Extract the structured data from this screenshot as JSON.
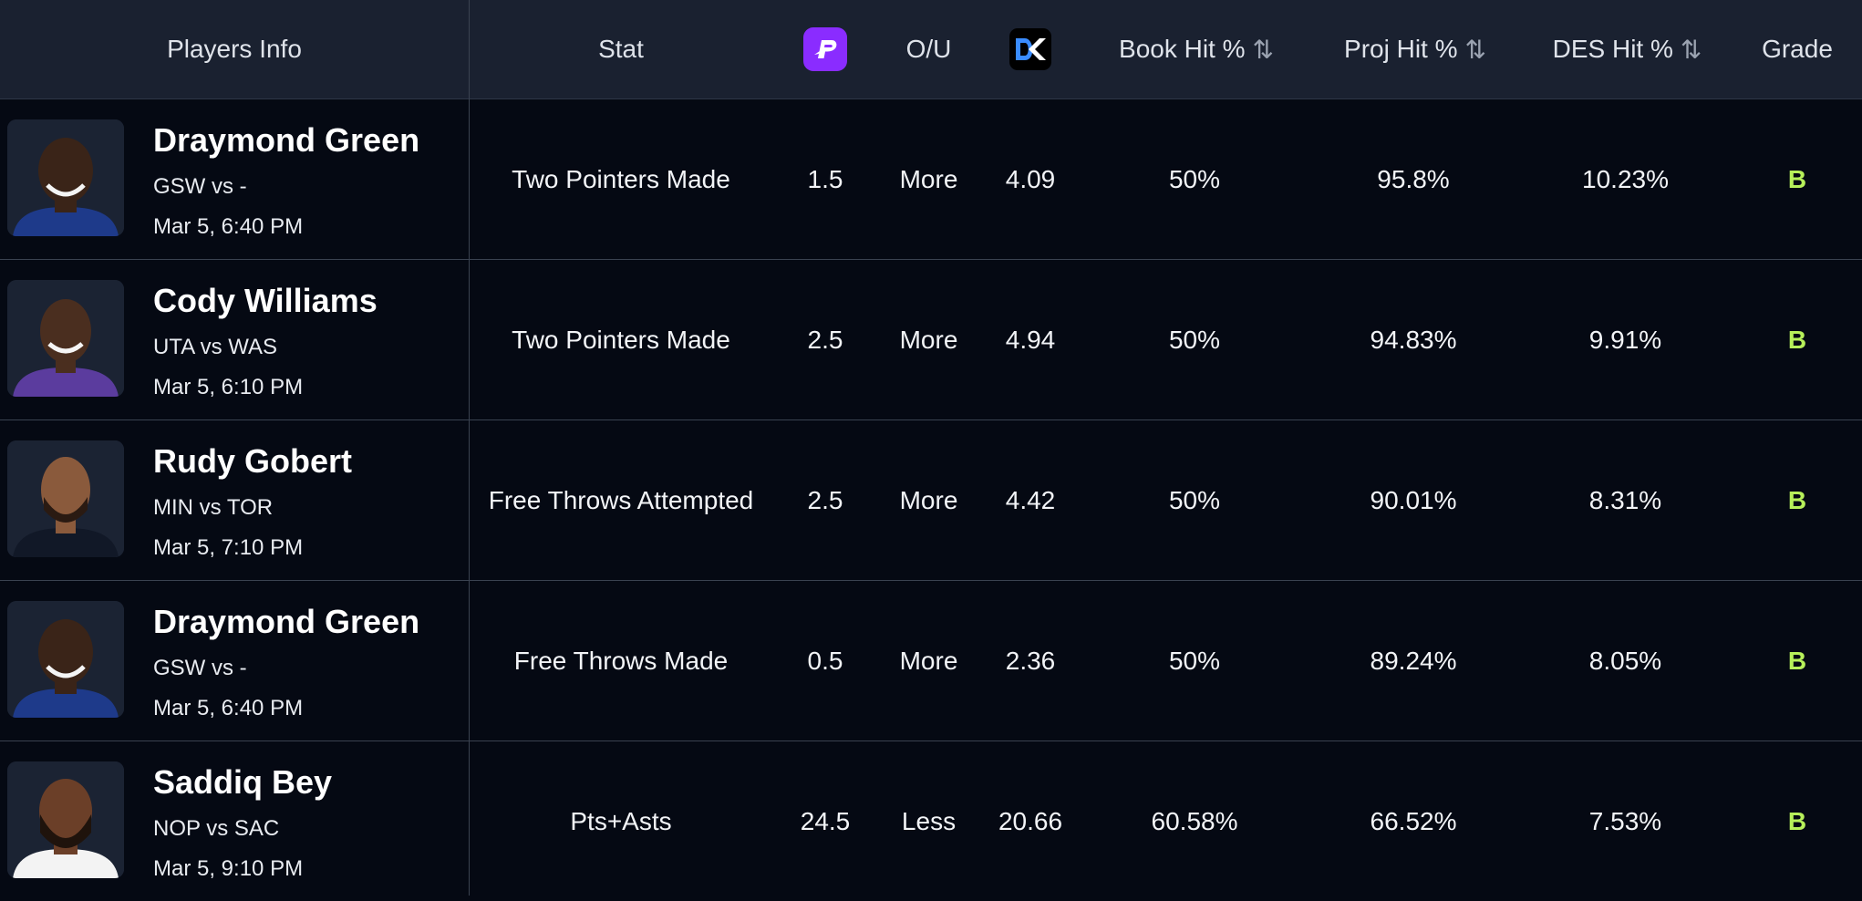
{
  "header": {
    "players_info": "Players Info",
    "stat": "Stat",
    "ou": "O/U",
    "book_hit": "Book Hit %",
    "proj_hit": "Proj Hit %",
    "des_hit": "DES Hit %",
    "grade": "Grade",
    "sort_icon": "⇅",
    "prizepicks_icon": "prizepicks-logo",
    "dk_icon": "draftkings-logo"
  },
  "colors": {
    "header_bg": "#1a2130",
    "body_bg": "#050913",
    "grade_color": "#b7f05a",
    "prizepicks_purple": "#8a2cff"
  },
  "rows": [
    {
      "name": "Draymond Green",
      "game": "GSW vs -",
      "time": "Mar 5, 6:40 PM",
      "stat": "Two Pointers Made",
      "line": "1.5",
      "ou": "More",
      "dk": "4.09",
      "book_hit": "50%",
      "proj_hit": "95.8%",
      "des_hit": "10.23%",
      "grade": "B"
    },
    {
      "name": "Cody Williams",
      "game": "UTA vs WAS",
      "time": "Mar 5, 6:10 PM",
      "stat": "Two Pointers Made",
      "line": "2.5",
      "ou": "More",
      "dk": "4.94",
      "book_hit": "50%",
      "proj_hit": "94.83%",
      "des_hit": "9.91%",
      "grade": "B"
    },
    {
      "name": "Rudy Gobert",
      "game": "MIN vs TOR",
      "time": "Mar 5, 7:10 PM",
      "stat": "Free Throws Attempted",
      "line": "2.5",
      "ou": "More",
      "dk": "4.42",
      "book_hit": "50%",
      "proj_hit": "90.01%",
      "des_hit": "8.31%",
      "grade": "B"
    },
    {
      "name": "Draymond Green",
      "game": "GSW vs -",
      "time": "Mar 5, 6:40 PM",
      "stat": "Free Throws Made",
      "line": "0.5",
      "ou": "More",
      "dk": "2.36",
      "book_hit": "50%",
      "proj_hit": "89.24%",
      "des_hit": "8.05%",
      "grade": "B"
    },
    {
      "name": "Saddiq Bey",
      "game": "NOP vs SAC",
      "time": "Mar 5, 9:10 PM",
      "stat": "Pts+Asts",
      "line": "24.5",
      "ou": "Less",
      "dk": "20.66",
      "book_hit": "60.58%",
      "proj_hit": "66.52%",
      "des_hit": "7.53%",
      "grade": "B"
    }
  ]
}
